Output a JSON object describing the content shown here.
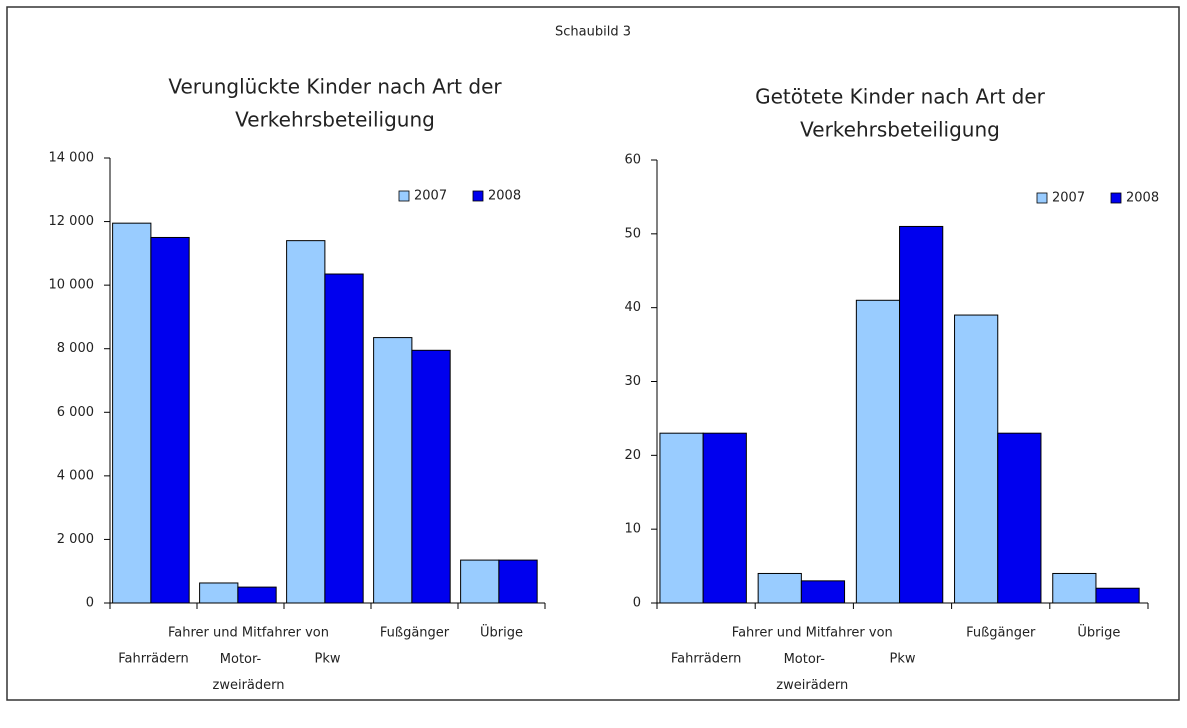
{
  "header": "Schaubild 3",
  "chart_data": [
    {
      "type": "bar",
      "title": [
        "Verunglückte Kinder nach Art der",
        "Verkehrsbeteiligung"
      ],
      "group_label": "Fahrer und Mitfahrer von",
      "group_size": 3,
      "categories": [
        "Fahrrädern",
        "Motor-zweirädern",
        "Pkw",
        "Fußgänger",
        "Übrige"
      ],
      "series": [
        {
          "name": "2007",
          "color": "#99ccff",
          "values": [
            11950,
            630,
            11400,
            8350,
            1350
          ]
        },
        {
          "name": "2008",
          "color": "#0000ee",
          "values": [
            11500,
            500,
            10350,
            7950,
            1350
          ]
        }
      ],
      "ylim": [
        0,
        14000
      ],
      "yticks": [
        {
          "value": 0,
          "label": "0"
        },
        {
          "value": 2000,
          "label": "2 000"
        },
        {
          "value": 4000,
          "label": "4 000"
        },
        {
          "value": 6000,
          "label": "6 000"
        },
        {
          "value": 8000,
          "label": "8 000"
        },
        {
          "value": 10000,
          "label": "10 000"
        },
        {
          "value": 12000,
          "label": "12 000"
        },
        {
          "value": 14000,
          "label": "14 000"
        }
      ],
      "legend": "top-right"
    },
    {
      "type": "bar",
      "title": [
        "Getötete Kinder nach Art der",
        "Verkehrsbeteiligung"
      ],
      "group_label": "Fahrer und Mitfahrer von",
      "group_size": 3,
      "categories": [
        "Fahrrädern",
        "Motor-zweirädern",
        "Pkw",
        "Fußgänger",
        "Übrige"
      ],
      "series": [
        {
          "name": "2007",
          "color": "#99ccff",
          "values": [
            23,
            4,
            41,
            39,
            4
          ]
        },
        {
          "name": "2008",
          "color": "#0000ee",
          "values": [
            23,
            3,
            51,
            23,
            2
          ]
        }
      ],
      "ylim": [
        0,
        60
      ],
      "yticks": [
        0,
        10,
        20,
        30,
        40,
        50,
        60
      ],
      "legend": "top-right"
    }
  ]
}
